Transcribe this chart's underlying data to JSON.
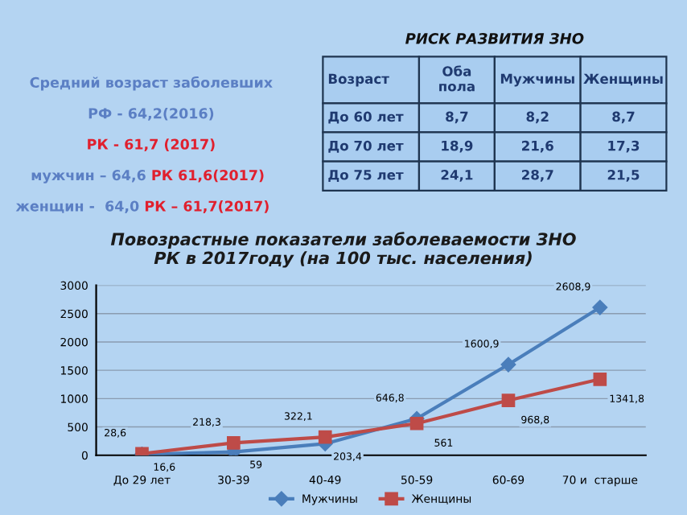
{
  "chart_data": {
    "type": "line",
    "title": "Повозрастные показатели заболеваемости ЗНО\nРК в 2017году (на 100 тыс. населения)",
    "categories": [
      "До 29 лет",
      "30-39",
      "40-49",
      "50-59",
      "60-69",
      "70 и  старше"
    ],
    "series": [
      {
        "name": "Мужчины",
        "color": "#4a7ebb",
        "marker": "diamond",
        "values": [
          16.6,
          59,
          203.4,
          646.8,
          1600.9,
          2608.9
        ],
        "value_labels": [
          "16,6",
          "59",
          "203,4",
          "646,8",
          "1600,9",
          "2608,9"
        ]
      },
      {
        "name": "Женщины",
        "color": "#be4b48",
        "marker": "square",
        "values": [
          28.6,
          218.3,
          322.1,
          561,
          968.8,
          1341.8
        ],
        "value_labels": [
          "28,6",
          "218,3",
          "322,1",
          "561",
          "968,8",
          "1341,8"
        ]
      }
    ],
    "ylim": [
      0,
      3000
    ],
    "yticks": [
      0,
      500,
      1000,
      1500,
      2000,
      2500,
      3000
    ],
    "grid": "y",
    "legend": "bottom",
    "annotations": [
      "Средний возраст заболевших",
      "РФ - 64,2(2016)",
      "РК - 61,7 (2017)",
      "мужчин – 64,6",
      "РК 61,6(2017)",
      "женщин -  64,0",
      "РК – 61,7(2017)",
      "РИСК РАЗВИТИЯ ЗНО",
      "Возраст",
      "Оба\nпола",
      "Мужчины",
      "Женщины",
      "До 60 лет",
      "8,7",
      "8,2",
      "8,7",
      "До 70 лет",
      "18,9",
      "21,6",
      "17,3",
      "До 75 лет",
      "24,1",
      "28,7",
      "21,5"
    ]
  }
}
